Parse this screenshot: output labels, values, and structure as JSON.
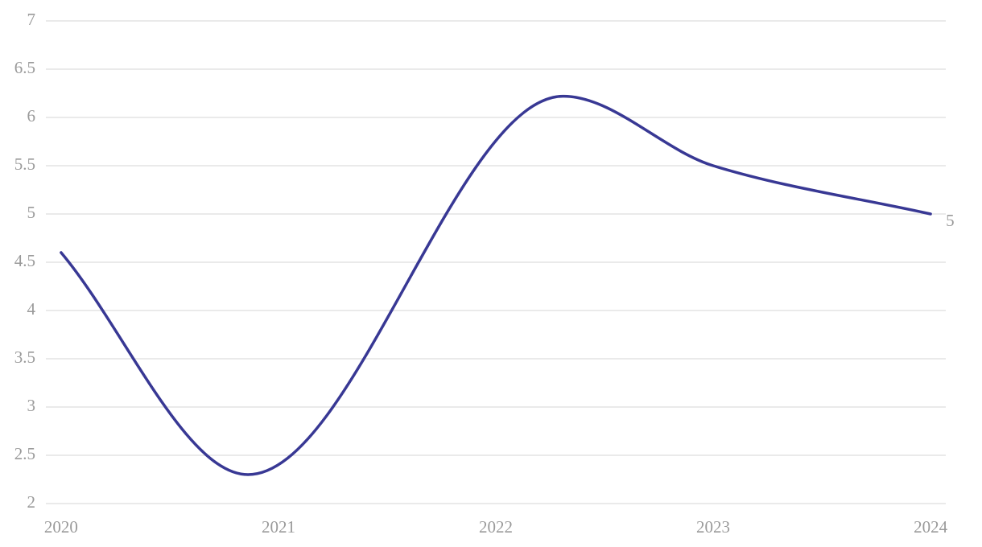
{
  "chart_data": {
    "type": "line",
    "x": [
      2020,
      2020.86,
      2022.31,
      2023,
      2024
    ],
    "values": [
      4.6,
      2.3,
      6.22,
      5.5,
      5
    ],
    "color": "#383894",
    "xlim": [
      2019.93,
      2024.07
    ],
    "xticks": [
      2020,
      2021,
      2022,
      2023,
      2024
    ],
    "ylim": [
      2,
      7
    ],
    "yticks": [
      2,
      2.5,
      3,
      3.5,
      4,
      4.5,
      5,
      5.5,
      6,
      6.5,
      7
    ],
    "grid": true
  }
}
